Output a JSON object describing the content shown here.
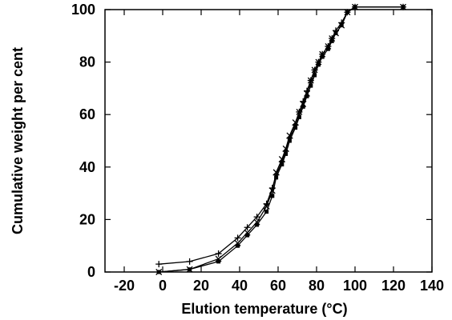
{
  "chart_data": {
    "type": "line",
    "xlabel": "Elution temperature (°C)",
    "ylabel": "Cumulative weight per cent",
    "xlim": [
      -30,
      140
    ],
    "ylim": [
      0,
      100
    ],
    "xticks": [
      -20,
      0,
      20,
      40,
      60,
      80,
      100,
      120,
      140
    ],
    "yticks": [
      0,
      20,
      40,
      60,
      80,
      100
    ],
    "grid": false,
    "series": [
      {
        "marker": "plus",
        "x": [
          -2,
          14,
          29,
          39,
          44,
          49,
          54,
          57,
          59,
          62,
          64,
          66,
          69,
          71,
          73,
          75,
          77,
          79,
          81,
          83,
          86,
          88,
          90,
          93,
          96,
          100,
          125
        ],
        "y": [
          3,
          4,
          7,
          13,
          17,
          21,
          26,
          32,
          37,
          42,
          46,
          51,
          56,
          61,
          65,
          69,
          73,
          77,
          80,
          83,
          86,
          89,
          92,
          95,
          99,
          101,
          101
        ]
      },
      {
        "marker": "cross",
        "x": [
          -2,
          14,
          29,
          39,
          44,
          49,
          54,
          57,
          59,
          62,
          64,
          66,
          69,
          71,
          73,
          75,
          77,
          79,
          81,
          83,
          86,
          88,
          90,
          93,
          96,
          100,
          125
        ],
        "y": [
          0,
          1,
          5,
          11,
          15,
          19,
          25,
          31,
          38,
          43,
          47,
          52,
          57,
          61,
          64,
          68,
          73,
          77,
          80,
          83,
          86,
          89,
          91,
          94,
          99,
          101,
          101
        ]
      },
      {
        "marker": "square",
        "x": [
          -2,
          14,
          29,
          39,
          44,
          49,
          54,
          57,
          59,
          62,
          64,
          66,
          69,
          71,
          73,
          75,
          77,
          79,
          81,
          83,
          86,
          88,
          90,
          93,
          96,
          100,
          125
        ],
        "y": [
          0,
          1,
          4,
          10,
          14,
          18,
          23,
          29,
          36,
          41,
          45,
          50,
          55,
          59,
          63,
          67,
          71,
          75,
          79,
          82,
          85,
          88,
          91,
          94,
          99,
          101,
          101
        ]
      }
    ]
  }
}
